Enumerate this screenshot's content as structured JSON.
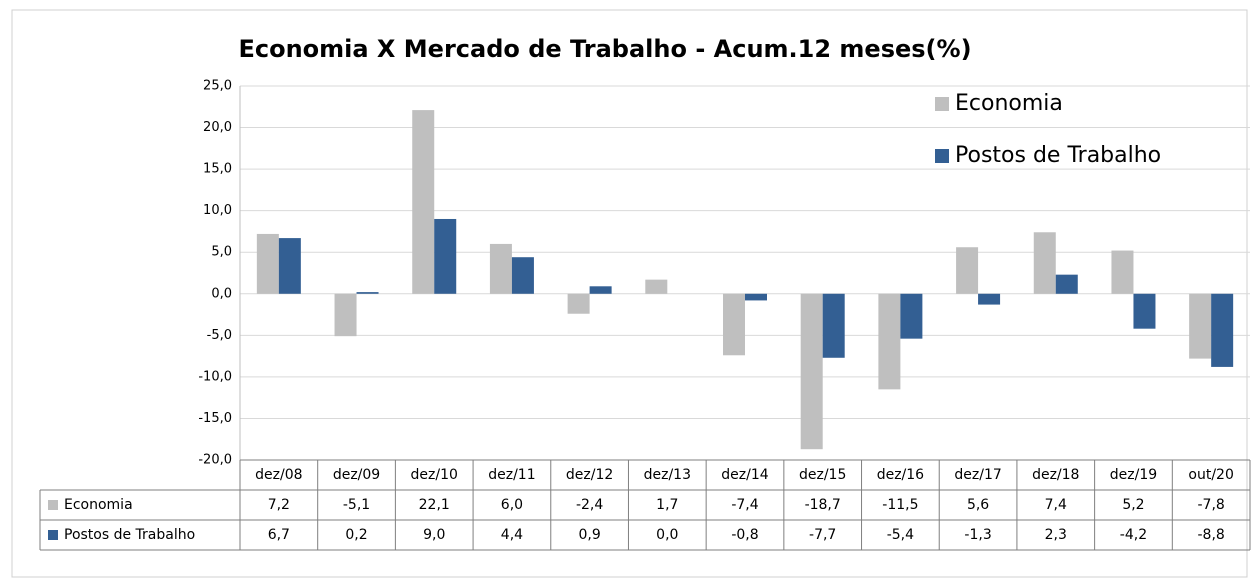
{
  "chart_data": {
    "type": "bar",
    "title": "Economia X Mercado de Trabalho - Acum.12 meses(%)",
    "categories": [
      "dez/08",
      "dez/09",
      "dez/10",
      "dez/11",
      "dez/12",
      "dez/13",
      "dez/14",
      "dez/15",
      "dez/16",
      "dez/17",
      "dez/18",
      "dez/19",
      "out/20"
    ],
    "series": [
      {
        "name": "Economia",
        "color": "#bfbfbf",
        "values": [
          7.2,
          -5.1,
          22.1,
          6.0,
          -2.4,
          1.7,
          -7.4,
          -18.7,
          -11.5,
          5.6,
          7.4,
          5.2,
          -7.8
        ],
        "value_labels": [
          "7,2",
          "-5,1",
          "22,1",
          "6,0",
          "-2,4",
          "1,7",
          "-7,4",
          "-18,7",
          "-11,5",
          "5,6",
          "7,4",
          "5,2",
          "-7,8"
        ]
      },
      {
        "name": "Postos de Trabalho",
        "color": "#335f93",
        "values": [
          6.7,
          0.2,
          9.0,
          4.4,
          0.9,
          0.0,
          -0.8,
          -7.7,
          -5.4,
          -1.3,
          2.3,
          -4.2,
          -8.8
        ],
        "value_labels": [
          "6,7",
          "0,2",
          "9,0",
          "4,4",
          "0,9",
          "0,0",
          "-0,8",
          "-7,7",
          "-5,4",
          "-1,3",
          "2,3",
          "-4,2",
          "-8,8"
        ]
      }
    ],
    "ylim": [
      -20,
      25
    ],
    "yticks": [
      {
        "value": -20,
        "label": "-20,0"
      },
      {
        "value": -15,
        "label": "-15,0"
      },
      {
        "value": -10,
        "label": "-10,0"
      },
      {
        "value": -5,
        "label": "-5,0"
      },
      {
        "value": 0,
        "label": "0,0"
      },
      {
        "value": 5,
        "label": "5,0"
      },
      {
        "value": 10,
        "label": "10,0"
      },
      {
        "value": 15,
        "label": "15,0"
      },
      {
        "value": 20,
        "label": "20,0"
      },
      {
        "value": 25,
        "label": "25,0"
      }
    ],
    "grid": true,
    "legend": "upper right"
  }
}
